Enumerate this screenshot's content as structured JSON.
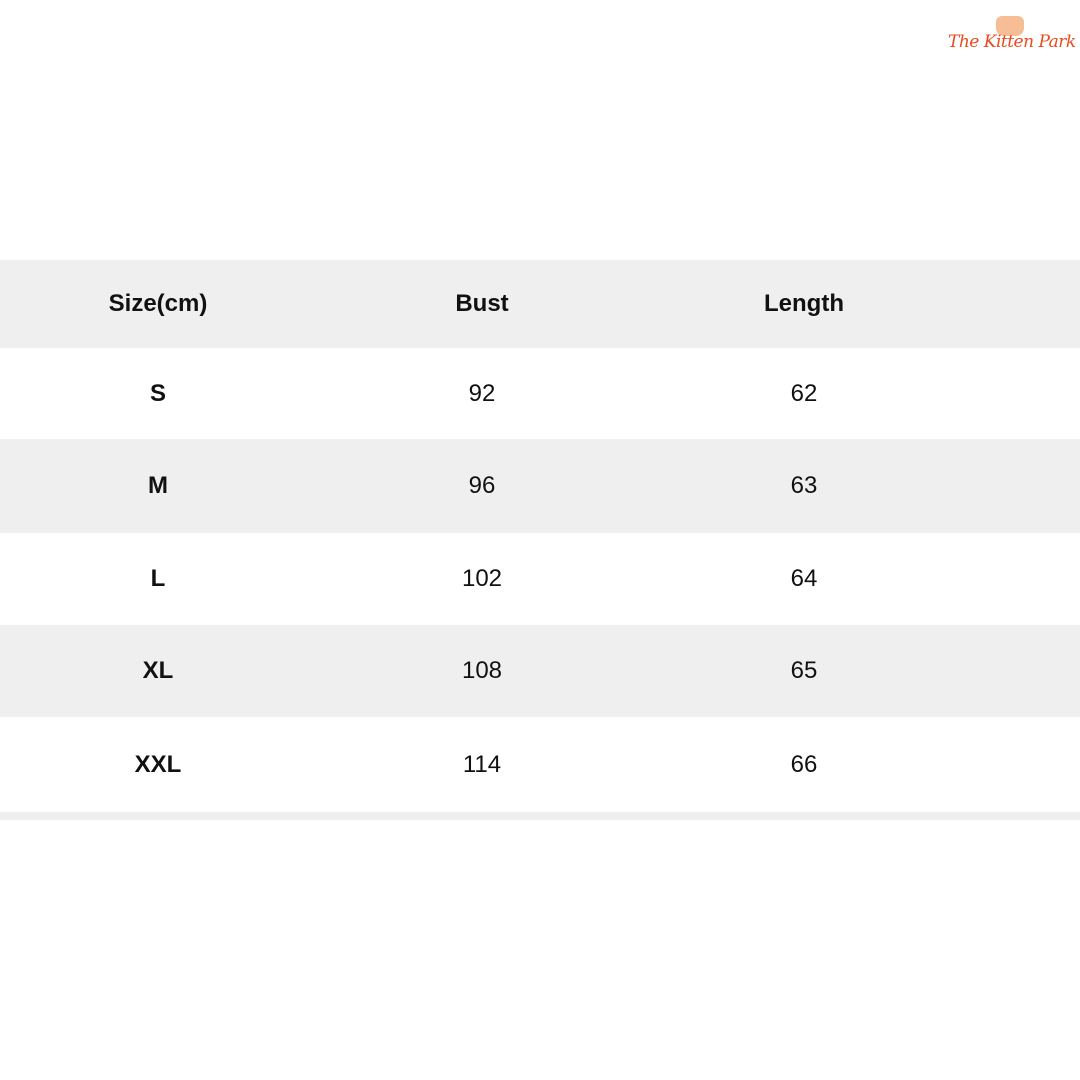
{
  "brand": {
    "logo_text": "The Kitten Park",
    "color": "#ea4b1e"
  },
  "table": {
    "headers": [
      "Size(cm)",
      "Bust",
      "Length"
    ],
    "rows": [
      [
        "S",
        "92",
        "62"
      ],
      [
        "M",
        "96",
        "63"
      ],
      [
        "L",
        "102",
        "64"
      ],
      [
        "XL",
        "108",
        "65"
      ],
      [
        "XXL",
        "114",
        "66"
      ]
    ]
  },
  "colors": {
    "stripe": "#efefef",
    "text": "#111111"
  }
}
